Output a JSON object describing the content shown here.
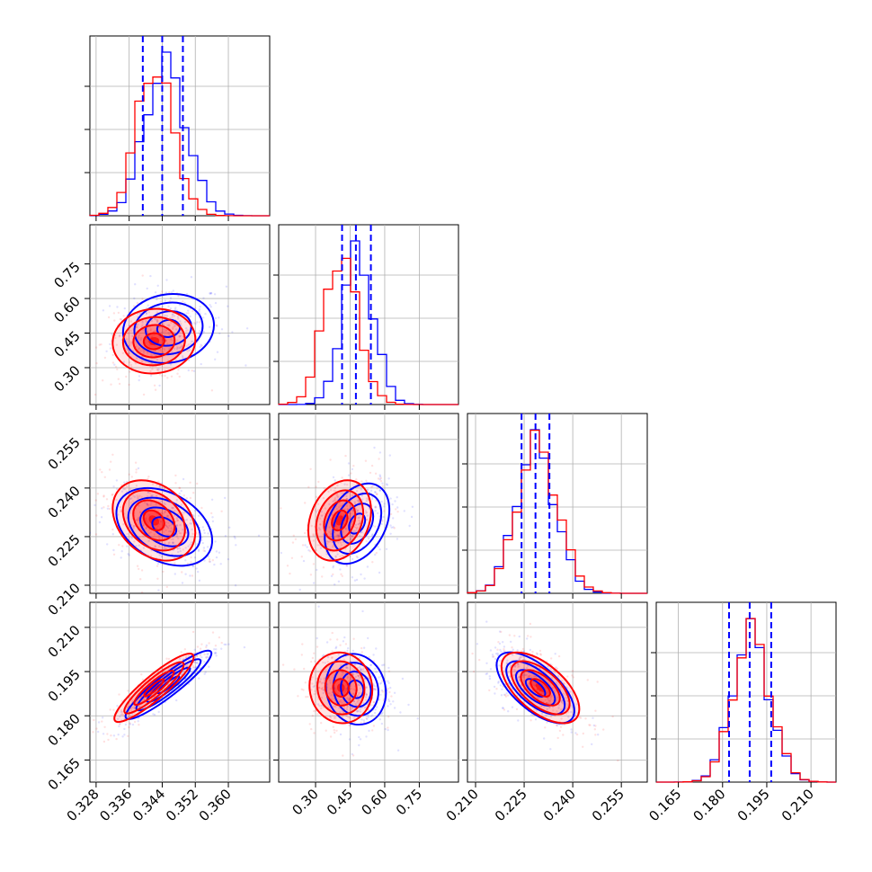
{
  "chart_data": {
    "type": "corner",
    "parameters": [
      {
        "range": [
          0.3265,
          0.37
        ],
        "ticks": [
          "0.328",
          "0.336",
          "0.344",
          "0.352",
          "0.360"
        ]
      },
      {
        "range": [
          0.14,
          0.92
        ],
        "ticks": [
          "0.30",
          "0.45",
          "0.60",
          "0.75"
        ]
      },
      {
        "range": [
          0.2075,
          0.263
        ],
        "ticks": [
          "0.210",
          "0.225",
          "0.240",
          "0.255"
        ]
      },
      {
        "range": [
          0.1575,
          0.2185
        ],
        "ticks": [
          "0.165",
          "0.180",
          "0.195",
          "0.210"
        ]
      }
    ],
    "colors": {
      "series_a": "#0000ff",
      "series_b": "#ff0000",
      "quantile_lines": "#0000ff"
    },
    "quantiles": [
      {
        "param": 0,
        "values": [
          0.3393,
          0.344,
          0.349
        ]
      },
      {
        "param": 1,
        "values": [
          0.415,
          0.475,
          0.54
        ]
      },
      {
        "param": 2,
        "values": [
          0.2242,
          0.2285,
          0.2328
        ]
      },
      {
        "param": 3,
        "values": [
          0.1822,
          0.1892,
          0.1965
        ]
      }
    ],
    "marginals": [
      {
        "param": 0,
        "series": [
          {
            "color": "blue",
            "mean": 0.3445,
            "std": 0.0048
          },
          {
            "color": "red",
            "mean": 0.342,
            "std": 0.0042
          }
        ]
      },
      {
        "param": 1,
        "series": [
          {
            "color": "blue",
            "mean": 0.48,
            "std": 0.065
          },
          {
            "color": "red",
            "mean": 0.405,
            "std": 0.07
          }
        ]
      },
      {
        "param": 2,
        "series": [
          {
            "color": "blue",
            "mean": 0.2282,
            "std": 0.0058
          },
          {
            "color": "red",
            "mean": 0.2288,
            "std": 0.006
          }
        ]
      },
      {
        "param": 3,
        "series": [
          {
            "color": "blue",
            "mean": 0.1892,
            "std": 0.006
          },
          {
            "color": "red",
            "mean": 0.1895,
            "std": 0.006
          }
        ]
      }
    ],
    "pairs": [
      {
        "row": 1,
        "col": 0,
        "blue": {
          "center": [
            0.3455,
            0.47
          ],
          "sd": [
            0.0055,
            0.075
          ],
          "corr": 0.1
        },
        "red": {
          "center": [
            0.342,
            0.415
          ],
          "sd": [
            0.005,
            0.07
          ],
          "corr": 0.05
        }
      },
      {
        "row": 2,
        "col": 0,
        "blue": {
          "center": [
            0.3445,
            0.228
          ],
          "sd": [
            0.0058,
            0.006
          ],
          "corr": -0.35
        },
        "red": {
          "center": [
            0.342,
            0.23
          ],
          "sd": [
            0.005,
            0.0062
          ],
          "corr": -0.3
        }
      },
      {
        "row": 2,
        "col": 1,
        "blue": {
          "center": [
            0.48,
            0.229
          ],
          "sd": [
            0.07,
            0.0062
          ],
          "corr": 0.35
        },
        "red": {
          "center": [
            0.405,
            0.23
          ],
          "sd": [
            0.068,
            0.0062
          ],
          "corr": 0.25
        }
      },
      {
        "row": 3,
        "col": 0,
        "blue": {
          "center": [
            0.3455,
            0.1905
          ],
          "sd": [
            0.0052,
            0.0058
          ],
          "corr": 0.92
        },
        "red": {
          "center": [
            0.342,
            0.1895
          ],
          "sd": [
            0.0048,
            0.0058
          ],
          "corr": 0.9
        }
      },
      {
        "row": 3,
        "col": 1,
        "blue": {
          "center": [
            0.475,
            0.189
          ],
          "sd": [
            0.065,
            0.006
          ],
          "corr": -0.1
        },
        "red": {
          "center": [
            0.41,
            0.1895
          ],
          "sd": [
            0.068,
            0.006
          ],
          "corr": -0.05
        }
      },
      {
        "row": 3,
        "col": 2,
        "blue": {
          "center": [
            0.2285,
            0.1895
          ],
          "sd": [
            0.006,
            0.006
          ],
          "corr": -0.65
        },
        "red": {
          "center": [
            0.23,
            0.1895
          ],
          "sd": [
            0.006,
            0.006
          ],
          "corr": -0.6
        }
      }
    ],
    "grid": true
  }
}
